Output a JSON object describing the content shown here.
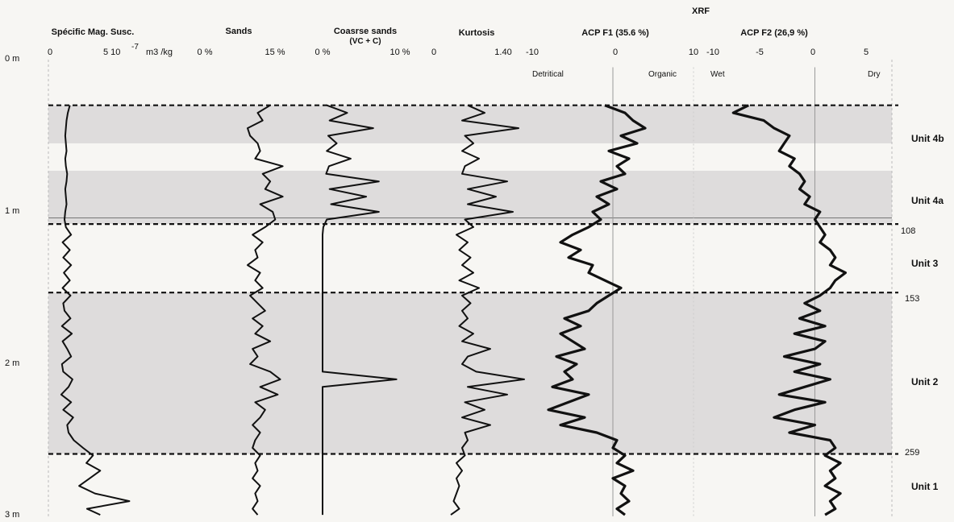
{
  "chart_data": {
    "type": "line",
    "title": "XRF",
    "depth_axis": {
      "ticks": [
        "0 m",
        "1 m",
        "2 m",
        "3 m"
      ],
      "range_m": [
        0,
        3
      ]
    },
    "panels": [
      {
        "id": "mag",
        "title": "Spécific Mag. Susc.",
        "ticks": [
          "0",
          "5 10",
          "m3 /kg"
        ],
        "tick_exponent": "-7",
        "range": [
          0,
          15
        ],
        "depth": [
          0.3,
          0.35,
          0.4,
          0.45,
          0.5,
          0.55,
          0.6,
          0.65,
          0.7,
          0.75,
          0.8,
          0.85,
          0.9,
          0.95,
          1.0,
          1.05,
          1.1,
          1.15,
          1.2,
          1.25,
          1.3,
          1.35,
          1.4,
          1.45,
          1.5,
          1.55,
          1.6,
          1.65,
          1.7,
          1.75,
          1.8,
          1.85,
          1.9,
          1.95,
          2.0,
          2.05,
          2.1,
          2.15,
          2.2,
          2.25,
          2.3,
          2.35,
          2.4,
          2.45,
          2.5,
          2.55,
          2.6,
          2.65,
          2.7,
          2.75,
          2.8,
          2.85,
          2.9,
          2.95,
          2.99
        ],
        "values": [
          3.0,
          2.7,
          2.5,
          2.4,
          2.3,
          2.4,
          2.5,
          2.3,
          2.4,
          2.6,
          2.5,
          2.3,
          2.4,
          2.5,
          2.3,
          2.2,
          2.4,
          3.2,
          1.9,
          3.0,
          2.0,
          3.2,
          2.1,
          3.0,
          1.9,
          3.1,
          2.0,
          2.2,
          3.1,
          1.8,
          3.3,
          1.9,
          2.6,
          3.2,
          1.8,
          2.0,
          3.4,
          2.8,
          1.7,
          3.2,
          2.0,
          3.5,
          2.6,
          2.8,
          3.6,
          5.0,
          6.5,
          5.5,
          7.6,
          6.0,
          4.4,
          6.8,
          12.0,
          5.6,
          7.6
        ]
      },
      {
        "id": "sands",
        "title": "Sands",
        "ticks": [
          "0 %",
          "15 %"
        ],
        "range": [
          0,
          17
        ],
        "depth": [
          0.3,
          0.35,
          0.4,
          0.45,
          0.5,
          0.55,
          0.6,
          0.65,
          0.7,
          0.75,
          0.8,
          0.85,
          0.9,
          0.95,
          1.0,
          1.05,
          1.1,
          1.15,
          1.2,
          1.25,
          1.3,
          1.35,
          1.4,
          1.45,
          1.5,
          1.55,
          1.6,
          1.65,
          1.7,
          1.75,
          1.8,
          1.85,
          1.9,
          1.95,
          2.0,
          2.05,
          2.1,
          2.15,
          2.2,
          2.25,
          2.3,
          2.35,
          2.4,
          2.45,
          2.5,
          2.55,
          2.6,
          2.65,
          2.7,
          2.75,
          2.8,
          2.85,
          2.9,
          2.95,
          2.99
        ],
        "values": [
          13.0,
          10.5,
          11.5,
          8.5,
          9.0,
          10.5,
          11.0,
          10.0,
          15.5,
          11.5,
          13.0,
          12.0,
          15.5,
          11.0,
          13.5,
          14.0,
          12.0,
          9.5,
          11.5,
          10.0,
          10.5,
          8.5,
          11.0,
          10.0,
          11.5,
          9.0,
          10.5,
          12.0,
          9.5,
          11.5,
          10.0,
          13.0,
          9.5,
          10.5,
          9.0,
          13.0,
          15.0,
          11.0,
          14.5,
          10.0,
          12.0,
          11.0,
          9.5,
          11.0,
          10.0,
          9.5,
          11.0,
          10.0,
          10.5,
          9.5,
          11.0,
          10.0,
          10.5,
          9.5,
          10.5
        ]
      },
      {
        "id": "coarse",
        "title": "Coasrse sands",
        "subtitle": "(VC + C)",
        "ticks": [
          "0 %",
          "10 %"
        ],
        "range": [
          0,
          11
        ],
        "depth": [
          0.3,
          0.35,
          0.4,
          0.45,
          0.5,
          0.55,
          0.6,
          0.65,
          0.7,
          0.75,
          0.8,
          0.85,
          0.9,
          0.95,
          1.0,
          1.05,
          1.1,
          1.15,
          1.2,
          1.25,
          1.3,
          1.35,
          1.4,
          1.45,
          1.5,
          1.55,
          1.6,
          1.65,
          1.7,
          1.75,
          1.8,
          1.85,
          1.9,
          1.95,
          2.0,
          2.05,
          2.1,
          2.15,
          2.2,
          2.25,
          2.3,
          2.35,
          2.4,
          2.45,
          2.5,
          2.55,
          2.6,
          2.65,
          2.7,
          2.75,
          2.8,
          2.85,
          2.9,
          2.95,
          2.99
        ],
        "values": [
          0.6,
          3.5,
          1.0,
          7.2,
          0.8,
          2.0,
          0.6,
          4.0,
          0.9,
          0.5,
          8.0,
          1.0,
          6.2,
          1.2,
          8.0,
          0.6,
          0.1,
          0.0,
          0.0,
          0.0,
          0.0,
          0.0,
          0.0,
          0.0,
          0.0,
          0.0,
          0.0,
          0.0,
          0.0,
          0.0,
          0.0,
          0.0,
          0.0,
          0.0,
          0.0,
          0.0,
          10.5,
          0.0,
          0.0,
          0.0,
          0.0,
          0.0,
          0.0,
          0.0,
          0.0,
          0.0,
          0.0,
          0.0,
          0.0,
          0.0,
          0.0,
          0.0,
          0.0,
          0.0,
          0.0
        ]
      },
      {
        "id": "kurt",
        "title": "Kurtosis",
        "ticks": [
          "0",
          "1.40"
        ],
        "range": [
          0,
          1.6
        ],
        "depth": [
          0.3,
          0.35,
          0.4,
          0.45,
          0.5,
          0.55,
          0.6,
          0.65,
          0.7,
          0.75,
          0.8,
          0.85,
          0.9,
          0.95,
          1.0,
          1.05,
          1.1,
          1.15,
          1.2,
          1.25,
          1.3,
          1.35,
          1.4,
          1.45,
          1.5,
          1.55,
          1.6,
          1.65,
          1.7,
          1.75,
          1.8,
          1.85,
          1.9,
          1.95,
          2.0,
          2.05,
          2.1,
          2.15,
          2.2,
          2.25,
          2.3,
          2.35,
          2.4,
          2.45,
          2.5,
          2.55,
          2.6,
          2.65,
          2.7,
          2.75,
          2.8,
          2.85,
          2.9,
          2.95,
          2.99
        ],
        "values": [
          0.6,
          0.9,
          0.5,
          1.5,
          0.55,
          0.7,
          0.5,
          0.8,
          0.55,
          0.5,
          1.3,
          0.6,
          1.1,
          0.6,
          1.4,
          0.55,
          0.7,
          0.4,
          0.6,
          0.45,
          0.65,
          0.5,
          0.7,
          0.45,
          0.8,
          0.5,
          0.65,
          0.5,
          0.6,
          0.45,
          0.7,
          0.5,
          1.0,
          0.6,
          0.5,
          0.75,
          1.6,
          0.6,
          1.3,
          0.55,
          0.9,
          0.5,
          1.0,
          0.55,
          0.6,
          0.5,
          0.55,
          0.4,
          0.5,
          0.4,
          0.45,
          0.4,
          0.35,
          0.45,
          0.3
        ]
      },
      {
        "id": "acp1",
        "title": "ACP F1 (35.6 %)",
        "ticks": [
          "-10",
          "0",
          "10"
        ],
        "side_labels": [
          "Detritical",
          "Organic"
        ],
        "range": [
          -10,
          10
        ],
        "depth": [
          0.3,
          0.35,
          0.4,
          0.45,
          0.5,
          0.55,
          0.6,
          0.65,
          0.7,
          0.75,
          0.8,
          0.85,
          0.9,
          0.95,
          1.0,
          1.05,
          1.1,
          1.15,
          1.2,
          1.25,
          1.3,
          1.35,
          1.4,
          1.45,
          1.5,
          1.55,
          1.6,
          1.65,
          1.7,
          1.75,
          1.8,
          1.85,
          1.9,
          1.95,
          2.0,
          2.05,
          2.1,
          2.15,
          2.2,
          2.25,
          2.3,
          2.35,
          2.4,
          2.45,
          2.5,
          2.55,
          2.6,
          2.65,
          2.7,
          2.75,
          2.8,
          2.85,
          2.9,
          2.95,
          2.99
        ],
        "values": [
          -1.0,
          1.5,
          2.5,
          4.0,
          1.0,
          3.0,
          -0.5,
          2.0,
          0.5,
          1.5,
          -1.5,
          0.5,
          -2.0,
          -0.5,
          -2.5,
          -1.5,
          -3.0,
          -5.0,
          -6.5,
          -4.0,
          -5.5,
          -2.5,
          -3.0,
          -1.0,
          1.0,
          -0.5,
          -2.0,
          -3.0,
          -6.0,
          -4.0,
          -6.5,
          -5.0,
          -3.5,
          -7.0,
          -4.5,
          -6.0,
          -5.0,
          -7.5,
          -3.0,
          -5.5,
          -8.0,
          -3.5,
          -6.5,
          -2.0,
          0.5,
          0.0,
          1.5,
          0.5,
          2.5,
          0.0,
          1.5,
          1.0,
          2.0,
          0.5,
          1.5
        ]
      },
      {
        "id": "acp2",
        "title": "ACP F2 (26,9 %)",
        "ticks": [
          "-10",
          "-5",
          "0",
          "5"
        ],
        "side_labels": [
          "Wet",
          "Dry"
        ],
        "range": [
          -10,
          7
        ],
        "depth": [
          0.3,
          0.35,
          0.4,
          0.45,
          0.5,
          0.55,
          0.6,
          0.65,
          0.7,
          0.75,
          0.8,
          0.85,
          0.9,
          0.95,
          1.0,
          1.05,
          1.1,
          1.15,
          1.2,
          1.25,
          1.3,
          1.35,
          1.4,
          1.45,
          1.5,
          1.55,
          1.6,
          1.65,
          1.7,
          1.75,
          1.8,
          1.85,
          1.9,
          1.95,
          2.0,
          2.05,
          2.1,
          2.15,
          2.2,
          2.25,
          2.3,
          2.35,
          2.4,
          2.45,
          2.5,
          2.55,
          2.6,
          2.65,
          2.7,
          2.75,
          2.8,
          2.85,
          2.9,
          2.95,
          2.99
        ],
        "values": [
          -6.5,
          -8.0,
          -5.0,
          -4.0,
          -2.5,
          -3.0,
          -3.5,
          -2.0,
          -2.5,
          -1.5,
          -1.0,
          -1.5,
          -0.5,
          -1.0,
          0.5,
          0.0,
          0.5,
          1.0,
          0.5,
          1.5,
          2.0,
          1.5,
          3.0,
          2.0,
          1.5,
          0.5,
          -1.0,
          0.5,
          -1.5,
          1.0,
          -2.0,
          1.0,
          0.0,
          -3.0,
          0.5,
          -2.0,
          1.5,
          -1.0,
          -3.5,
          1.0,
          -2.0,
          -4.0,
          0.0,
          -2.5,
          1.5,
          2.0,
          1.0,
          2.5,
          1.5,
          2.0,
          1.0,
          2.5,
          1.5,
          2.0,
          1.0
        ]
      }
    ],
    "units": [
      {
        "label": "Unit 4b",
        "depth": 0.55
      },
      {
        "label": "Unit 4a",
        "depth": 0.95
      },
      {
        "label": "Unit 3",
        "depth": 1.35
      },
      {
        "label": "Unit 2",
        "depth": 2.05
      },
      {
        "label": "Unit 1",
        "depth": 2.8
      }
    ],
    "boundaries": [
      {
        "depth": 0.3,
        "label": ""
      },
      {
        "depth": 1.08,
        "label": "108"
      },
      {
        "depth": 1.53,
        "label": "153"
      },
      {
        "depth": 2.59,
        "label": "259"
      }
    ],
    "shaded_bands": [
      [
        0.3,
        0.55
      ],
      [
        0.73,
        1.08
      ],
      [
        1.53,
        2.59
      ]
    ]
  }
}
